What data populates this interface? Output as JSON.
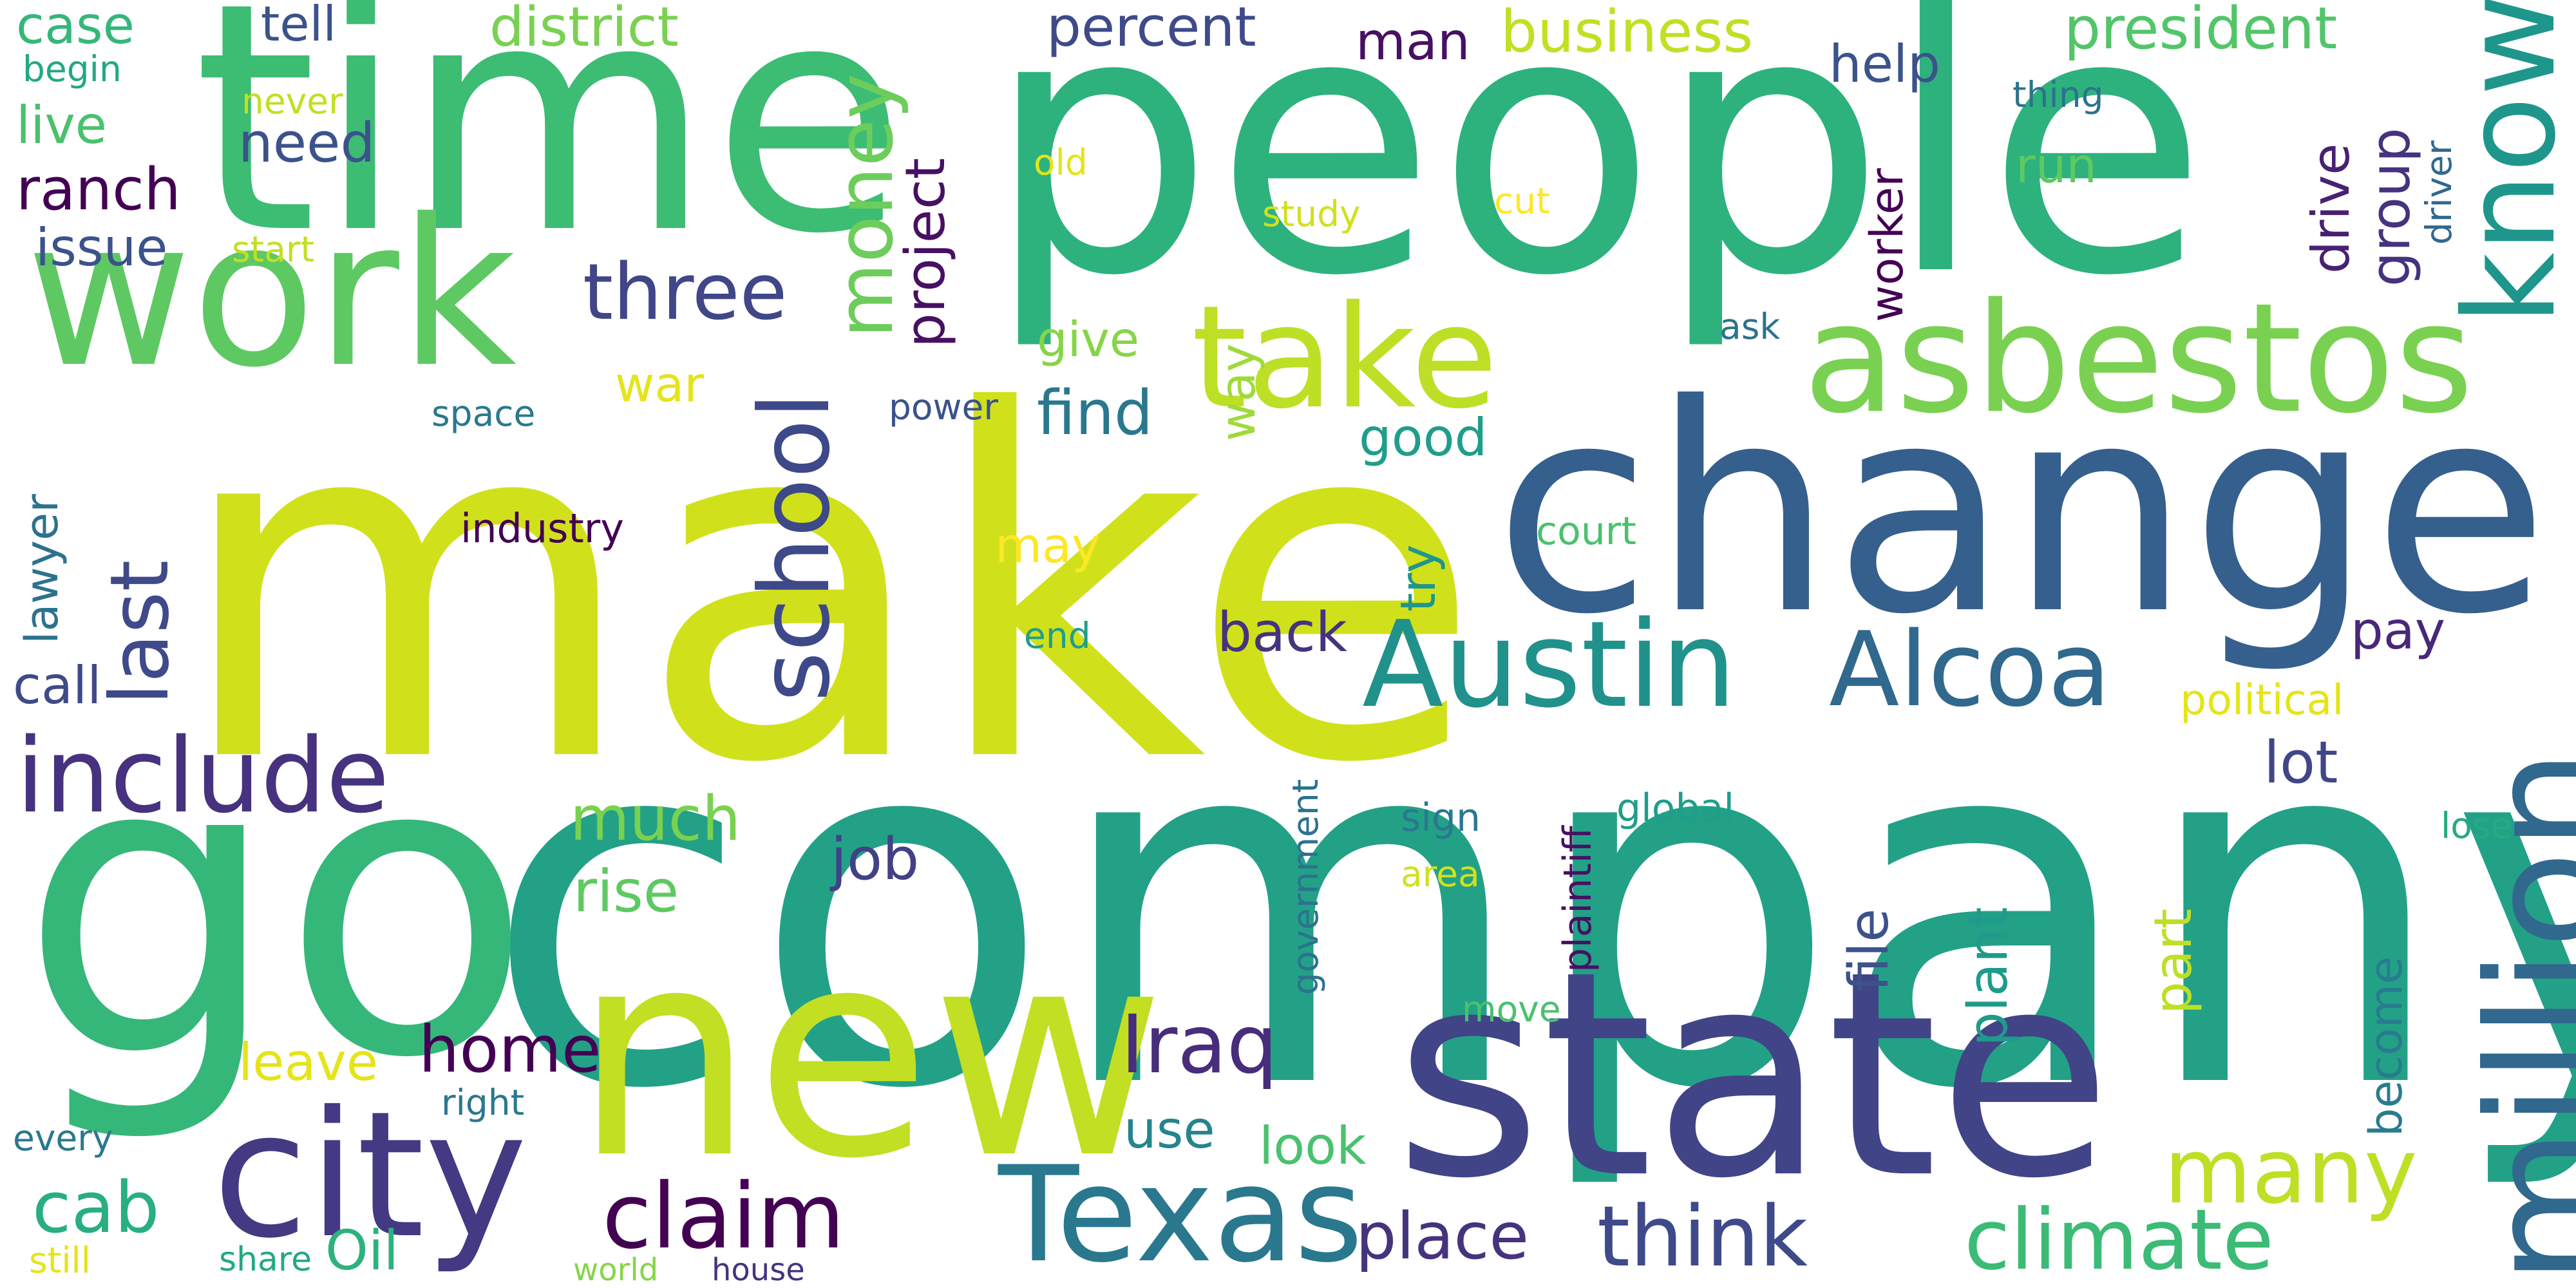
{
  "words": [
    {
      "text": "company",
      "color": "#22A187"
    },
    {
      "text": "make",
      "color": "#D0E11C"
    },
    {
      "text": "people",
      "color": "#2DB27D"
    },
    {
      "text": "time",
      "color": "#3DBC74"
    },
    {
      "text": "change",
      "color": "#355F8D"
    },
    {
      "text": "go",
      "color": "#35B779"
    },
    {
      "text": "state",
      "color": "#414487"
    },
    {
      "text": "work",
      "color": "#5EC962"
    },
    {
      "text": "new",
      "color": "#C2DF23"
    },
    {
      "text": "asbestos",
      "color": "#7AD151"
    },
    {
      "text": "million",
      "color": "#31688E"
    },
    {
      "text": "take",
      "color": "#BDDF26"
    },
    {
      "text": "city",
      "color": "#443983"
    },
    {
      "text": "Texas",
      "color": "#2A788E"
    },
    {
      "text": "Austin",
      "color": "#21918C"
    },
    {
      "text": "Alcoa",
      "color": "#31688E"
    },
    {
      "text": "include",
      "color": "#46327E"
    },
    {
      "text": "know",
      "color": "#1F968B"
    },
    {
      "text": "climate",
      "color": "#3BBB75"
    },
    {
      "text": "think",
      "color": "#3E4A89"
    },
    {
      "text": "claim",
      "color": "#440154"
    },
    {
      "text": "school",
      "color": "#3E4989"
    },
    {
      "text": "many",
      "color": "#BDDF26"
    },
    {
      "text": "Iraq",
      "color": "#472D7B"
    },
    {
      "text": "three",
      "color": "#404688"
    },
    {
      "text": "money",
      "color": "#6CCD5A"
    },
    {
      "text": "last",
      "color": "#3E4A89"
    },
    {
      "text": "cab",
      "color": "#29AF7F"
    },
    {
      "text": "place",
      "color": "#46337E"
    },
    {
      "text": "home",
      "color": "#440154"
    },
    {
      "text": "much",
      "color": "#7AD151"
    },
    {
      "text": "find",
      "color": "#2A788E"
    },
    {
      "text": "business",
      "color": "#C2DF23"
    },
    {
      "text": "president",
      "color": "#52C569"
    },
    {
      "text": "job",
      "color": "#424086"
    },
    {
      "text": "rise",
      "color": "#5EC962"
    },
    {
      "text": "project",
      "color": "#471063"
    },
    {
      "text": "district",
      "color": "#7AD151"
    },
    {
      "text": "percent",
      "color": "#3E4A89"
    },
    {
      "text": "ranch",
      "color": "#440154"
    },
    {
      "text": "lot",
      "color": "#404688"
    },
    {
      "text": "group",
      "color": "#46327E"
    },
    {
      "text": "back",
      "color": "#46337E"
    },
    {
      "text": "Oil",
      "color": "#2DB27D"
    },
    {
      "text": "need",
      "color": "#3B528B"
    },
    {
      "text": "good",
      "color": "#1F9E89"
    },
    {
      "text": "call",
      "color": "#3E4A89"
    },
    {
      "text": "live",
      "color": "#4AC16D"
    },
    {
      "text": "look",
      "color": "#4AC16D"
    },
    {
      "text": "issue",
      "color": "#3B528B"
    },
    {
      "text": "use",
      "color": "#25848E"
    },
    {
      "text": "plant",
      "color": "#1E9B8A"
    },
    {
      "text": "file",
      "color": "#3B528B"
    },
    {
      "text": "case",
      "color": "#35B779"
    },
    {
      "text": "help",
      "color": "#3B528B"
    },
    {
      "text": "pay",
      "color": "#482878"
    },
    {
      "text": "part",
      "color": "#BDDF26"
    },
    {
      "text": "leave",
      "color": "#E5E419"
    },
    {
      "text": "man",
      "color": "#471063"
    },
    {
      "text": "war",
      "color": "#E5E419"
    },
    {
      "text": "give",
      "color": "#86D549"
    },
    {
      "text": "drive",
      "color": "#482173"
    },
    {
      "text": "tell",
      "color": "#3B528B"
    },
    {
      "text": "run",
      "color": "#5EC962"
    },
    {
      "text": "way",
      "color": "#9FDA3A"
    },
    {
      "text": "try",
      "color": "#1F968B"
    },
    {
      "text": "may",
      "color": "#FDE725"
    },
    {
      "text": "worker",
      "color": "#440154"
    },
    {
      "text": "lawyer",
      "color": "#2C728E"
    },
    {
      "text": "become",
      "color": "#287C8E"
    },
    {
      "text": "industry",
      "color": "#440154"
    },
    {
      "text": "plaintiff",
      "color": "#471063"
    },
    {
      "text": "government",
      "color": "#2C728E"
    },
    {
      "text": "court",
      "color": "#4AC16D"
    },
    {
      "text": "political",
      "color": "#E5E419"
    },
    {
      "text": "sign",
      "color": "#2A788E"
    },
    {
      "text": "area",
      "color": "#D0E11C"
    },
    {
      "text": "global",
      "color": "#1F9E89"
    },
    {
      "text": "thing",
      "color": "#2C728E"
    },
    {
      "text": "begin",
      "color": "#22A884"
    },
    {
      "text": "never",
      "color": "#C2DF23"
    },
    {
      "text": "start",
      "color": "#C2DF23"
    },
    {
      "text": "old",
      "color": "#E5E419"
    },
    {
      "text": "cut",
      "color": "#FDE725"
    },
    {
      "text": "study",
      "color": "#D0E11C"
    },
    {
      "text": "ask",
      "color": "#2C728E"
    },
    {
      "text": "driver",
      "color": "#31688E"
    },
    {
      "text": "space",
      "color": "#2A788E"
    },
    {
      "text": "power",
      "color": "#3B528B"
    },
    {
      "text": "end",
      "color": "#1F9E89"
    },
    {
      "text": "lose",
      "color": "#25AB82"
    },
    {
      "text": "move",
      "color": "#4AC16D"
    },
    {
      "text": "right",
      "color": "#2A788E"
    },
    {
      "text": "every",
      "color": "#2A788E"
    },
    {
      "text": "share",
      "color": "#22A884"
    },
    {
      "text": "still",
      "color": "#E5E419"
    },
    {
      "text": "world",
      "color": "#86D549"
    },
    {
      "text": "house",
      "color": "#46337E"
    }
  ]
}
